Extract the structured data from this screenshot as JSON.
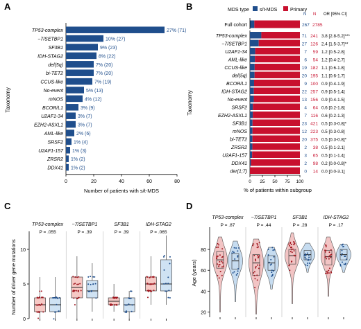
{
  "colors": {
    "blue": "#1f4e8c",
    "red": "#c8102e",
    "violin_red": "#f2c4c4",
    "violin_blue": "#c6dcf0",
    "box_red": "#f6c9c5",
    "box_blue": "#cfe2f3",
    "dot_red": "#a01820",
    "dot_blue": "#1f4e8c"
  },
  "chart_data": [
    {
      "panel": "A",
      "type": "bar",
      "orientation": "horizontal",
      "ylabel": "Taxonomy",
      "xlabel": "Number of patients with s/t-MDS",
      "xlim": [
        0,
        80
      ],
      "xticks": [
        "0",
        "20",
        "40",
        "60",
        "80"
      ],
      "categories": [
        "TP53-complex",
        "−7/SETBP1",
        "SF3B1",
        "IDH-STAG2",
        "del(5q)",
        "bi-TET2",
        "CCUS-like",
        "No-event",
        "mNOS",
        "BCOR/L1",
        "U2AF1-34",
        "EZH2-ASXL1",
        "AML-like",
        "SRSF2",
        "U2AF1-157",
        "ZRSR2",
        "DDX41"
      ],
      "values": [
        71,
        27,
        23,
        22,
        20,
        20,
        19,
        13,
        12,
        9,
        7,
        7,
        6,
        4,
        3,
        2,
        2
      ],
      "labels": [
        "27% (71)",
        "10% (27)",
        "9% (23)",
        "8% (22)",
        "7% (20)",
        "7% (20)",
        "7% (19)",
        "5% (13)",
        "4% (12)",
        "3% (9)",
        "3% (7)",
        "3% (7)",
        "2% (6)",
        "1% (4)",
        "1% (3)",
        "1% (2)",
        "1% (2)"
      ]
    },
    {
      "panel": "B",
      "type": "bar",
      "orientation": "horizontal-stacked-percent",
      "ylabel": "Taxonomy",
      "xlabel": "% of patients within subgroup",
      "xlim": [
        0,
        100
      ],
      "xticks": [
        "0",
        "25",
        "50",
        "75",
        "100"
      ],
      "legend_title": "MDS type",
      "series": [
        {
          "name": "s/t-MDS"
        },
        {
          "name": "Primary"
        }
      ],
      "col_headers": {
        "n1": "N",
        "n2": "N",
        "or": "OR [95% CI]"
      },
      "cohort": {
        "label": "Full cohort",
        "n1": "267",
        "n2": "2785",
        "pct_st": 8.8
      },
      "categories": [
        "TP53-complex",
        "−7/SETBP1",
        "U2AF1-34",
        "AML-like",
        "CCUS-like",
        "del(5q)",
        "BCOR/L1",
        "IDH-STAG2",
        "No-event",
        "SRSF2",
        "EZH2-ASXL1",
        "SF3B1",
        "mNOS",
        "bi-TET2",
        "ZRSR2",
        "U2AF1-157",
        "DDX41",
        "der(1;7)"
      ],
      "n1": [
        "71",
        "27",
        "7",
        "6",
        "19",
        "20",
        "9",
        "22",
        "13",
        "4",
        "7",
        "23",
        "12",
        "20",
        "2",
        "3",
        "2",
        "0"
      ],
      "n2": [
        "241",
        "126",
        "59",
        "54",
        "182",
        "195",
        "100",
        "257",
        "156",
        "64",
        "116",
        "421",
        "223",
        "375",
        "38",
        "65",
        "98",
        "14"
      ],
      "or": [
        "3.8 [2.8-5.2]***",
        "2.4 [1.5-3.7]**",
        "1.2 [0.5-2.8]",
        "1.2 [0.4-2.7]",
        "1.1 [0.6-1.8]",
        "1.1 [0.6-1.7]",
        "0.9 [0.4-1.9]",
        "0.9 [0.5-1.4]",
        "0.9 [0.4-1.5]",
        "0.6 [0.2-1.8]",
        "0.6 [0.2-1.3]",
        "0.5 [0.3-0.8]*",
        "0.5 [0.3-0.8]",
        "0.5 [0.3-0.8]*",
        "0.5 [0.1-2.1]",
        "0.5 [0.1-1.4]",
        "0.2 [0.0-0.8]*",
        "0.0 [0.0-3.1]"
      ],
      "pct_st": [
        22.8,
        17.6,
        10.6,
        10.0,
        9.5,
        9.3,
        8.3,
        7.9,
        7.7,
        5.9,
        5.7,
        5.2,
        5.1,
        5.1,
        5.0,
        4.4,
        2.0,
        0.0
      ]
    },
    {
      "panel": "C",
      "type": "box",
      "ylabel": "Number of driver gene mutations",
      "ylim": [
        0,
        12
      ],
      "yticks": [
        "0",
        "5",
        "10"
      ],
      "groups": [
        {
          "name": "TP53-complex",
          "p": "P = .055",
          "primary": {
            "q1": 1,
            "median": 2,
            "q3": 3,
            "wlo": 0,
            "whi": 6
          },
          "st": {
            "q1": 1,
            "median": 2,
            "q3": 3,
            "wlo": 0,
            "whi": 6
          }
        },
        {
          "name": "−7/SETBP1",
          "p": "P = .39",
          "primary": {
            "q1": 3,
            "median": 4.5,
            "q3": 6,
            "wlo": 0,
            "whi": 9
          },
          "st": {
            "q1": 3,
            "median": 4,
            "q3": 5.5,
            "wlo": 1,
            "whi": 8
          }
        },
        {
          "name": "SF3B1",
          "p": "P = .39",
          "primary": {
            "q1": 2,
            "median": 2.5,
            "q3": 3,
            "wlo": 1,
            "whi": 5
          },
          "st": {
            "q1": 1,
            "median": 2,
            "q3": 3,
            "wlo": 0,
            "whi": 4
          }
        },
        {
          "name": "IDH-STAG2",
          "p": "P = .065",
          "primary": {
            "q1": 4,
            "median": 5,
            "q3": 6,
            "wlo": 2,
            "whi": 9
          },
          "st": {
            "q1": 4,
            "median": 5,
            "q3": 8.5,
            "wlo": 2,
            "whi": 12
          }
        }
      ]
    },
    {
      "panel": "D",
      "type": "violin",
      "ylabel": "Age (years)",
      "ylim": [
        15,
        100
      ],
      "yticks": [
        "20",
        "40",
        "60",
        "80"
      ],
      "groups": [
        {
          "name": "TP53-complex",
          "p": "P = .87",
          "primary": {
            "q1": 62,
            "median": 70,
            "q3": 78,
            "min": 20,
            "max": 92
          },
          "st": {
            "q1": 61,
            "median": 69,
            "q3": 76,
            "min": 30,
            "max": 88
          }
        },
        {
          "name": "−7/SETBP1",
          "p": "P = .44",
          "primary": {
            "q1": 55,
            "median": 67,
            "q3": 75,
            "min": 18,
            "max": 90
          },
          "st": {
            "q1": 60,
            "median": 67,
            "q3": 74,
            "min": 42,
            "max": 82
          }
        },
        {
          "name": "SF3B1",
          "p": "P = .28",
          "primary": {
            "q1": 66,
            "median": 74,
            "q3": 80,
            "min": 28,
            "max": 96
          },
          "st": {
            "q1": 70,
            "median": 75,
            "q3": 79,
            "min": 58,
            "max": 86
          }
        },
        {
          "name": "IDH-STAG2",
          "p": "P = .17",
          "primary": {
            "q1": 65,
            "median": 73,
            "q3": 79,
            "min": 35,
            "max": 92
          },
          "st": {
            "q1": 70,
            "median": 75,
            "q3": 80,
            "min": 58,
            "max": 85
          }
        }
      ]
    }
  ],
  "panel_letters": [
    "A",
    "B",
    "C",
    "D"
  ]
}
